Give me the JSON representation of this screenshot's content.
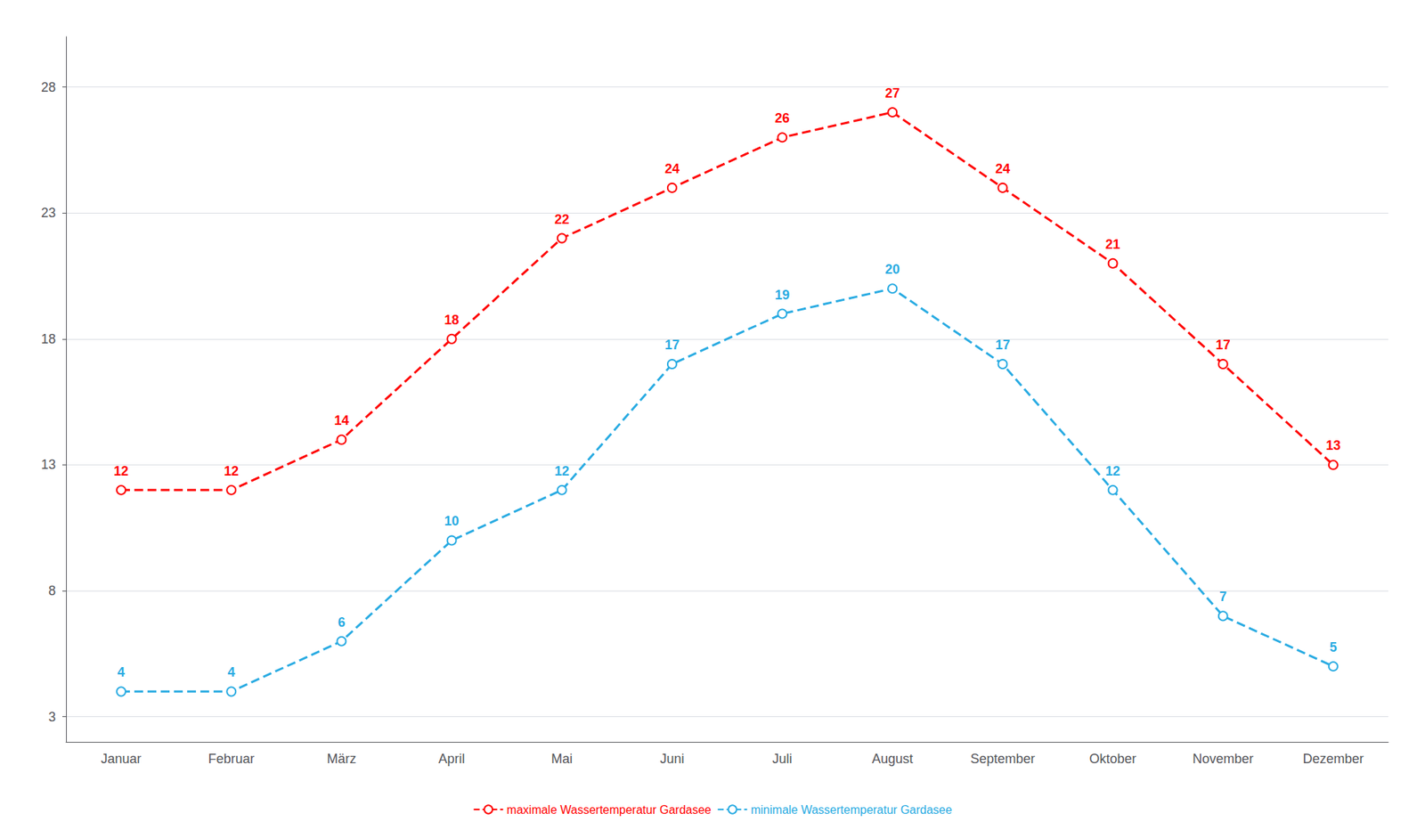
{
  "chart_data": {
    "type": "line",
    "categories": [
      "Januar",
      "Februar",
      "März",
      "April",
      "Mai",
      "Juni",
      "Juli",
      "August",
      "September",
      "Oktober",
      "November",
      "Dezember"
    ],
    "series": [
      {
        "name": "maximale Wassertemperatur Gardasee",
        "color": "#FF0000",
        "values": [
          12,
          12,
          14,
          18,
          22,
          24,
          26,
          27,
          24,
          21,
          17,
          13
        ]
      },
      {
        "name": "minimale Wassertemperatur Gardasee",
        "color": "#29ABE2",
        "values": [
          4,
          4,
          6,
          10,
          12,
          17,
          19,
          20,
          17,
          12,
          7,
          5
        ]
      }
    ],
    "ylim": [
      2.0,
      30.0
    ],
    "yticks": [
      3,
      8,
      13,
      18,
      23,
      28
    ],
    "grid": true,
    "legend": "bottom",
    "data_labels": true,
    "line_style": "dashed",
    "marker": "circle"
  }
}
